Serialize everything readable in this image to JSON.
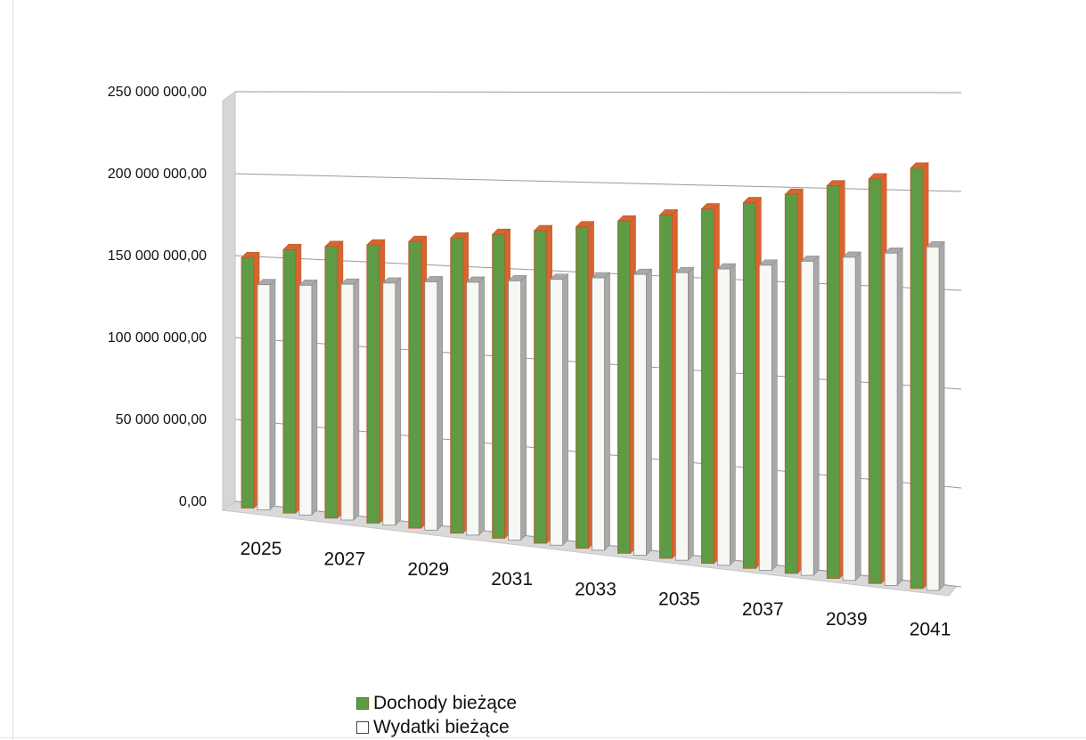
{
  "chart_data": {
    "type": "bar",
    "style": "3d-clustered-columns",
    "categories": [
      "2025",
      "2026",
      "2027",
      "2028",
      "2029",
      "2030",
      "2031",
      "2032",
      "2033",
      "2034",
      "2035",
      "2036",
      "2037",
      "2038",
      "2039",
      "2040",
      "2041"
    ],
    "x_tick_labels_shown": [
      "2025",
      "2027",
      "2029",
      "2031",
      "2033",
      "2035",
      "2037",
      "2039",
      "2041"
    ],
    "series": [
      {
        "name": "Dochody bieżące",
        "color": "#5f9a45",
        "side_color": "#d9652e",
        "values": [
          153000000,
          159000000,
          162000000,
          164000000,
          167000000,
          170000000,
          173000000,
          176000000,
          179000000,
          183000000,
          187000000,
          191000000,
          195000000,
          200000000,
          205000000,
          209000000,
          215000000
        ]
      },
      {
        "name": "Wydatki bieżące",
        "color": "#f7f7f4",
        "side_color": "#a9a9a9",
        "values": [
          137000000,
          138000000,
          140000000,
          142000000,
          144000000,
          145000000,
          147000000,
          149000000,
          151000000,
          154000000,
          156000000,
          159000000,
          162000000,
          165000000,
          168000000,
          171000000,
          175000000
        ]
      }
    ],
    "y_tick_labels": [
      "250 000 000,00",
      "200 000 000,00",
      "150 000 000,00",
      "100 000 000,00",
      "50 000 000,00",
      "0,00"
    ],
    "ylim": [
      0,
      250000000
    ],
    "grid": true,
    "legend_position": "bottom"
  },
  "legend": {
    "items": [
      {
        "label": "Dochody bieżące"
      },
      {
        "label": "Wydatki bieżące"
      }
    ]
  }
}
